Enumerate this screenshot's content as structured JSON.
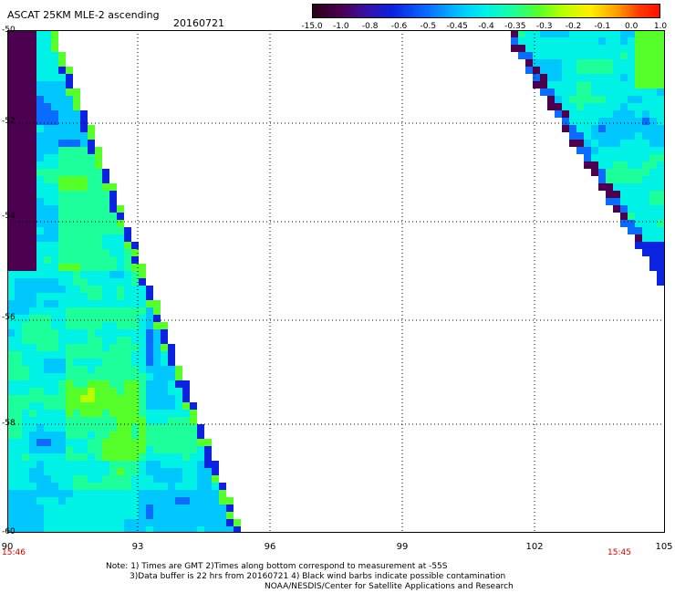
{
  "header": {
    "title": "ASCAT 25KM MLE-2 ascending",
    "date": "20160721"
  },
  "colorbar": {
    "ticks": [
      "-15.0",
      "-1.0",
      "-0.8",
      "-0.6",
      "-0.5",
      "-0.45",
      "-0.4",
      "-0.35",
      "-0.3",
      "-0.2",
      "-0.1",
      "0.0",
      "1.0"
    ],
    "colors": [
      "#2a0014",
      "#4b0050",
      "#0b22e0",
      "#0a6cff",
      "#00c8ff",
      "#00f2e6",
      "#1cff9a",
      "#56ff2a",
      "#b8ff00",
      "#fff000",
      "#ff9a00",
      "#ff3a00",
      "#ff1000"
    ]
  },
  "map": {
    "lat_labels": [
      "-50",
      "-52",
      "-54",
      "-56",
      "-58",
      "-60"
    ],
    "lon_labels": [
      "90",
      "93",
      "96",
      "99",
      "102",
      "105"
    ],
    "time_left": "15:46",
    "time_right": "15:45",
    "lon_range": [
      90,
      105
    ],
    "lat_range": [
      -60,
      -50
    ]
  },
  "notes": {
    "line1": "Note: 1) Times are GMT 2)Times along bottom correspond to measurement at -55S",
    "line2": "3)Data buffer is 22 hrs from 20160721 4) Black wind barbs indicate possible contamination",
    "line3": "NOAA/NESDIS/Center for Satellite Applications and Research"
  }
}
